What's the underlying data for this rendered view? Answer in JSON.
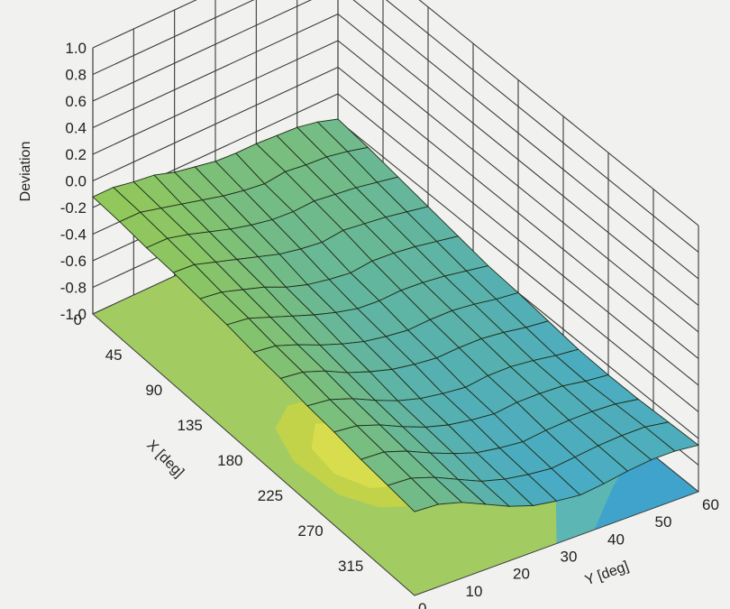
{
  "chart_data": {
    "type": "surface3d",
    "title": "",
    "zlabel": "Deviation",
    "xlabel": "X [deg]",
    "ylabel": "Y [deg]",
    "z_ticks": [
      "1.0",
      "0.8",
      "0.6",
      "0.4",
      "0.2",
      "0.0",
      "-0.2",
      "-0.4",
      "-0.6",
      "-0.8",
      "-1.0"
    ],
    "x_ticks": [
      "0",
      "45",
      "90",
      "135",
      "180",
      "225",
      "270",
      "315"
    ],
    "y_ticks": [
      "0",
      "10",
      "20",
      "30",
      "40",
      "50",
      "60"
    ],
    "xlim": [
      0,
      360
    ],
    "ylim": [
      0,
      60
    ],
    "zlim": [
      -1.0,
      1.0
    ],
    "grid": true,
    "floor_contour": true,
    "colormap": [
      "#3fa3cc",
      "#5bb6b4",
      "#7fc08f",
      "#a2cc62",
      "#c2d34a",
      "#d7dd4d"
    ],
    "x": [
      0,
      30,
      60,
      90,
      120,
      150,
      180,
      210,
      240,
      270,
      300,
      330,
      360
    ],
    "y": [
      0,
      5,
      10,
      15,
      20,
      25,
      30,
      35,
      40,
      45,
      50,
      55,
      60
    ],
    "z": [
      [
        -0.12,
        -0.12,
        -0.15,
        -0.17,
        -0.22,
        -0.25,
        -0.28,
        -0.29,
        -0.29,
        -0.3,
        -0.31,
        -0.34,
        -0.39
      ],
      [
        -0.13,
        -0.13,
        -0.17,
        -0.21,
        -0.25,
        -0.29,
        -0.32,
        -0.34,
        -0.32,
        -0.34,
        -0.35,
        -0.38,
        -0.42
      ],
      [
        -0.15,
        -0.15,
        -0.19,
        -0.24,
        -0.29,
        -0.33,
        -0.36,
        -0.37,
        -0.36,
        -0.38,
        -0.4,
        -0.43,
        -0.46
      ],
      [
        -0.16,
        -0.17,
        -0.22,
        -0.27,
        -0.32,
        -0.37,
        -0.4,
        -0.42,
        -0.4,
        -0.42,
        -0.44,
        -0.47,
        -0.5
      ],
      [
        -0.18,
        -0.2,
        -0.25,
        -0.3,
        -0.37,
        -0.42,
        -0.45,
        -0.47,
        -0.45,
        -0.46,
        -0.48,
        -0.51,
        -0.54
      ],
      [
        -0.2,
        -0.22,
        -0.28,
        -0.34,
        -0.4,
        -0.45,
        -0.49,
        -0.5,
        -0.49,
        -0.5,
        -0.52,
        -0.55,
        -0.58
      ],
      [
        -0.23,
        -0.25,
        -0.31,
        -0.38,
        -0.44,
        -0.49,
        -0.52,
        -0.54,
        -0.53,
        -0.53,
        -0.55,
        -0.58,
        -0.6
      ],
      [
        -0.25,
        -0.27,
        -0.33,
        -0.41,
        -0.47,
        -0.52,
        -0.55,
        -0.57,
        -0.56,
        -0.56,
        -0.58,
        -0.61,
        -0.63
      ],
      [
        -0.28,
        -0.3,
        -0.36,
        -0.44,
        -0.51,
        -0.56,
        -0.59,
        -0.61,
        -0.59,
        -0.59,
        -0.61,
        -0.64,
        -0.66
      ],
      [
        -0.3,
        -0.32,
        -0.38,
        -0.46,
        -0.53,
        -0.58,
        -0.61,
        -0.63,
        -0.61,
        -0.61,
        -0.62,
        -0.65,
        -0.67
      ],
      [
        -0.33,
        -0.34,
        -0.4,
        -0.48,
        -0.55,
        -0.61,
        -0.64,
        -0.66,
        -0.64,
        -0.63,
        -0.63,
        -0.64,
        -0.67
      ],
      [
        -0.35,
        -0.36,
        -0.42,
        -0.5,
        -0.58,
        -0.63,
        -0.66,
        -0.68,
        -0.66,
        -0.64,
        -0.63,
        -0.63,
        -0.66
      ],
      [
        -0.37,
        -0.38,
        -0.43,
        -0.51,
        -0.59,
        -0.65,
        -0.68,
        -0.7,
        -0.68,
        -0.65,
        -0.63,
        -0.63,
        -0.65
      ]
    ]
  }
}
